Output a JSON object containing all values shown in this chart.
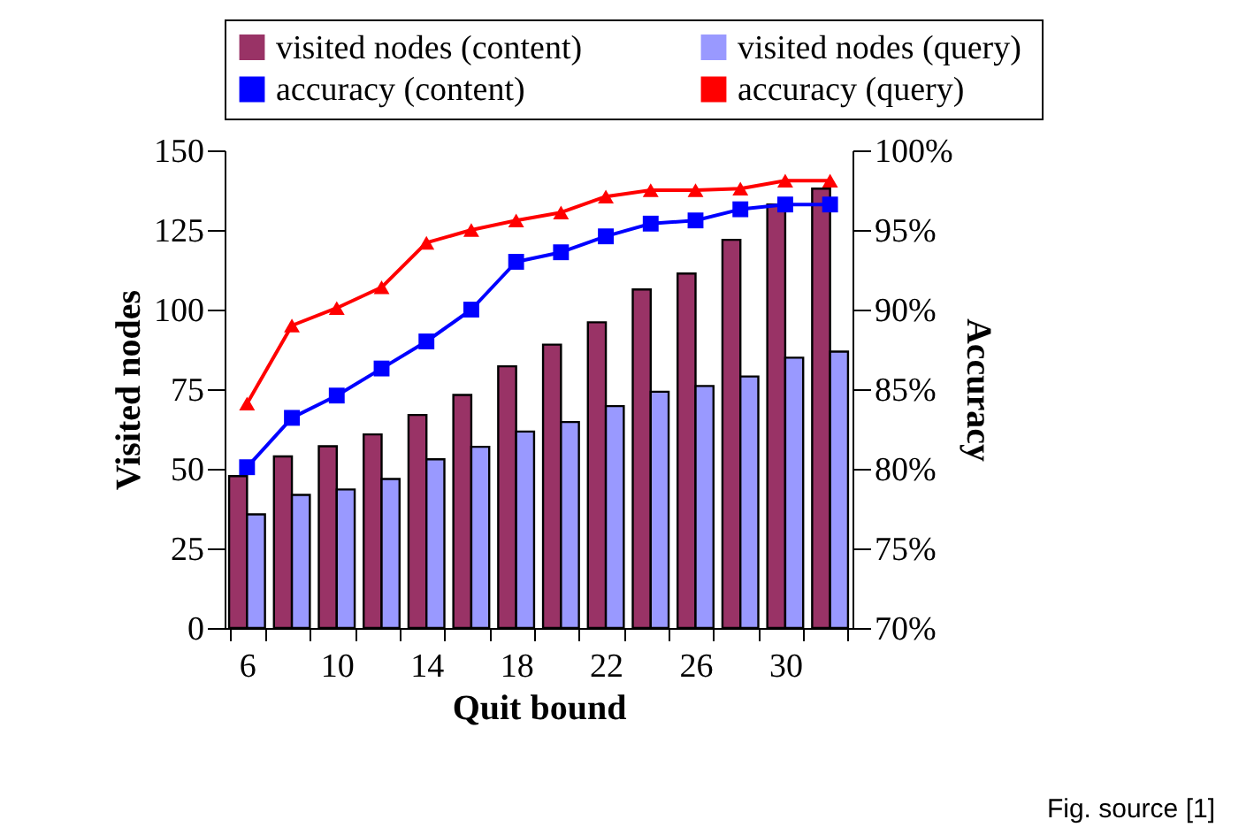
{
  "chart_data": {
    "type": "bar",
    "xlabel": "Quit bound",
    "ylabel": "Visited nodes",
    "y2label": "Accuracy",
    "categories": [
      "6",
      null,
      "10",
      null,
      "14",
      null,
      "18",
      null,
      "22",
      null,
      "26",
      null,
      "30",
      null
    ],
    "series": [
      {
        "name": "visited nodes  (content)",
        "color": "#993366",
        "values": [
          47.7,
          53.9,
          57.1,
          60.8,
          66.9,
          73.2,
          82.2,
          89.0,
          96.0,
          106.3,
          111.3,
          121.9,
          133.0,
          138.0
        ]
      },
      {
        "name": "visited nodes  (query)",
        "color": "#9999ff",
        "values": [
          35.7,
          41.8,
          43.5,
          46.8,
          53.0,
          56.9,
          61.7,
          64.7,
          69.7,
          74.2,
          76.0,
          79.0,
          84.9,
          86.8
        ]
      },
      {
        "name": "accuracy  (content)",
        "type": "line",
        "axis": "y2",
        "marker": "square",
        "color": "#0000ff",
        "values": [
          80.1,
          83.2,
          84.6,
          86.3,
          88.0,
          90.0,
          93.0,
          93.6,
          94.6,
          95.4,
          95.6,
          96.3,
          96.6,
          96.6
        ]
      },
      {
        "name": "accuracy  (query)",
        "type": "line",
        "axis": "y2",
        "marker": "triangle",
        "color": "#ff0000",
        "values": [
          84.1,
          89.0,
          90.1,
          91.4,
          94.2,
          95.0,
          95.6,
          96.1,
          97.1,
          97.5,
          97.5,
          97.6,
          98.1,
          98.1
        ]
      }
    ],
    "ylim": [
      0,
      150
    ],
    "yticks": [
      0,
      25,
      50,
      75,
      100,
      125,
      150
    ],
    "y2lim": [
      70,
      100
    ],
    "y2ticks": [
      {
        "value": 70,
        "label": "70%"
      },
      {
        "value": 75,
        "label": "75%"
      },
      {
        "value": 80,
        "label": "80%"
      },
      {
        "value": 85,
        "label": "85%"
      },
      {
        "value": 90,
        "label": "90%"
      },
      {
        "value": 95,
        "label": "95%"
      },
      {
        "value": 100,
        "label": "100%"
      }
    ],
    "legend": "top",
    "annotations": [
      "Fig. source [1]"
    ]
  }
}
